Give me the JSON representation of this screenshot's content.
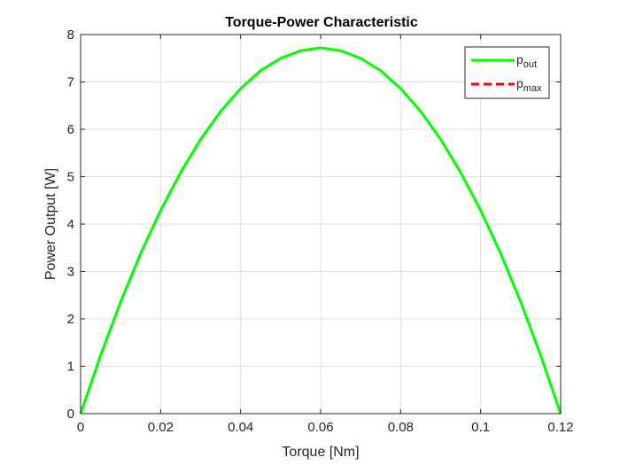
{
  "chart_data": {
    "type": "line",
    "title": "Torque-Power Characteristic",
    "xlabel": "Torque [Nm]",
    "ylabel": "Power Output [W]",
    "xlim": [
      0,
      0.12
    ],
    "ylim": [
      0,
      8
    ],
    "xticks": [
      0,
      0.02,
      0.04,
      0.06,
      0.08,
      0.1,
      0.12
    ],
    "xtick_labels": [
      "0",
      "0.02",
      "0.04",
      "0.06",
      "0.08",
      "0.1",
      "0.12"
    ],
    "yticks": [
      0,
      1,
      2,
      3,
      4,
      5,
      6,
      7,
      8
    ],
    "ytick_labels": [
      "0",
      "1",
      "2",
      "3",
      "4",
      "5",
      "6",
      "7",
      "8"
    ],
    "grid": true,
    "legend_position": "top-right",
    "series": [
      {
        "name": "p",
        "subscript": "out",
        "color": "#00ff00",
        "style": "solid",
        "x": [
          0,
          0.005,
          0.01,
          0.015,
          0.02,
          0.025,
          0.03,
          0.035,
          0.04,
          0.045,
          0.05,
          0.055,
          0.06,
          0.065,
          0.07,
          0.075,
          0.08,
          0.085,
          0.09,
          0.095,
          0.1,
          0.105,
          0.11,
          0.115,
          0.12
        ],
        "y": [
          0,
          1.23,
          2.36,
          3.38,
          4.29,
          5.09,
          5.79,
          6.38,
          6.86,
          7.24,
          7.5,
          7.66,
          7.72,
          7.66,
          7.5,
          7.24,
          6.86,
          6.38,
          5.79,
          5.09,
          4.29,
          3.38,
          2.36,
          1.23,
          0
        ]
      },
      {
        "name": "p",
        "subscript": "max",
        "color": "#ff0000",
        "style": "dashed",
        "x": [],
        "y": []
      }
    ]
  }
}
